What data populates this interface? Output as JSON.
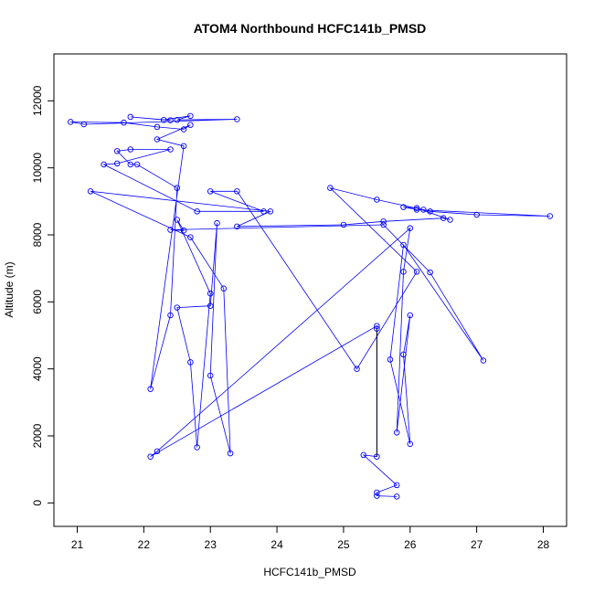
{
  "chart_data": {
    "type": "scatter",
    "title": "ATOM4 Northbound HCFC141b_PMSD",
    "xlabel": "HCFC141b_PMSD",
    "ylabel": "Altitude (m)",
    "xlim": [
      20.65,
      28.35
    ],
    "ylim": [
      -700,
      13400
    ],
    "x_ticks": [
      21,
      22,
      23,
      24,
      25,
      26,
      27,
      28
    ],
    "y_ticks": [
      0,
      2000,
      4000,
      6000,
      8000,
      10000,
      12000
    ],
    "grid": false,
    "legend": "none",
    "colors": {
      "series": "#0000ff",
      "segment_dark": "#000000"
    },
    "series": [
      {
        "marker": "open-circle",
        "connect": "line",
        "points": [
          [
            25.8,
            190
          ],
          [
            25.5,
            210
          ],
          [
            25.5,
            310
          ],
          [
            25.8,
            530
          ],
          [
            25.3,
            1430
          ],
          [
            25.5,
            1380
          ],
          [
            25.5,
            5200
          ],
          [
            25.5,
            5280
          ],
          [
            22.1,
            1380
          ],
          [
            22.2,
            1540
          ],
          [
            26.0,
            8200
          ],
          [
            25.9,
            6900
          ],
          [
            25.8,
            2100
          ],
          [
            26.0,
            5600
          ],
          [
            25.9,
            4430
          ],
          [
            26.0,
            1760
          ],
          [
            25.7,
            4280
          ],
          [
            25.9,
            7700
          ],
          [
            27.1,
            4250
          ],
          [
            26.3,
            6880
          ],
          [
            25.6,
            8300
          ],
          [
            22.4,
            8150
          ],
          [
            22.6,
            8130
          ],
          [
            22.5,
            8450
          ],
          [
            23.0,
            6250
          ],
          [
            22.8,
            1660
          ],
          [
            22.7,
            4200
          ],
          [
            22.5,
            5830
          ],
          [
            23.0,
            5880
          ],
          [
            23.1,
            8350
          ],
          [
            23.0,
            3800
          ],
          [
            23.3,
            1480
          ],
          [
            23.2,
            6400
          ],
          [
            22.7,
            7930
          ],
          [
            21.2,
            9300
          ],
          [
            23.9,
            8700
          ],
          [
            23.4,
            8250
          ],
          [
            25.0,
            8300
          ],
          [
            25.6,
            8400
          ],
          [
            26.5,
            8500
          ],
          [
            26.6,
            8450
          ],
          [
            26.1,
            8800
          ],
          [
            25.9,
            8830
          ],
          [
            26.1,
            8750
          ],
          [
            28.1,
            8560
          ],
          [
            27.0,
            8600
          ],
          [
            26.3,
            8700
          ],
          [
            26.2,
            8750
          ],
          [
            25.5,
            9050
          ],
          [
            24.8,
            9400
          ],
          [
            26.1,
            6900
          ],
          [
            25.2,
            4000
          ],
          [
            23.4,
            9300
          ],
          [
            23.0,
            9300
          ],
          [
            23.8,
            8700
          ],
          [
            22.8,
            8700
          ],
          [
            21.4,
            10100
          ],
          [
            21.6,
            10130
          ],
          [
            22.4,
            10550
          ],
          [
            21.8,
            10550
          ],
          [
            21.6,
            10500
          ],
          [
            21.8,
            10100
          ],
          [
            21.9,
            10100
          ],
          [
            22.5,
            9400
          ],
          [
            22.4,
            5600
          ],
          [
            22.1,
            3400
          ],
          [
            22.6,
            10650
          ],
          [
            22.2,
            10850
          ],
          [
            22.7,
            11280
          ],
          [
            22.6,
            11150
          ],
          [
            22.2,
            11220
          ],
          [
            21.7,
            11350
          ],
          [
            20.9,
            11370
          ],
          [
            21.1,
            11300
          ],
          [
            23.4,
            11450
          ],
          [
            22.5,
            11430
          ],
          [
            22.7,
            11550
          ],
          [
            22.3,
            11430
          ],
          [
            21.8,
            11520
          ],
          [
            22.4,
            11420
          ]
        ]
      }
    ],
    "dark_segment": [
      [
        25.5,
        1380
      ],
      [
        25.5,
        5200
      ]
    ]
  }
}
